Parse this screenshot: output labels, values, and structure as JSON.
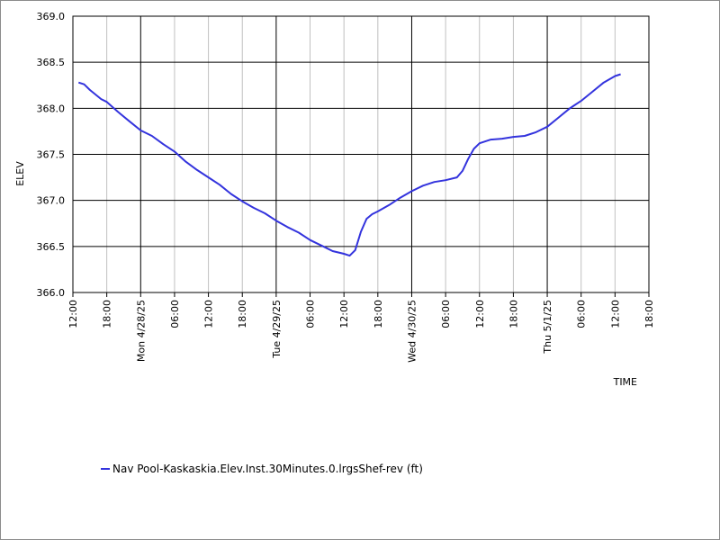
{
  "chart_data": {
    "type": "line",
    "xlabel": "TIME",
    "ylabel": "ELEV",
    "ylim": [
      366.0,
      369.0
    ],
    "xlim": [
      "2025-04-27T12:00",
      "2025-05-01T18:00"
    ],
    "y_ticks": [
      "369.0",
      "368.5",
      "368.0",
      "367.5",
      "367.0",
      "366.5",
      "366.0"
    ],
    "x_ticks": [
      "12:00",
      "18:00",
      "Mon 4/28/25",
      "06:00",
      "12:00",
      "18:00",
      "Tue 4/29/25",
      "06:00",
      "12:00",
      "18:00",
      "Wed 4/30/25",
      "06:00",
      "12:00",
      "18:00",
      "Thu 5/1/25",
      "06:00",
      "12:00",
      "18:00"
    ],
    "major_gridlines_at": [
      "Mon 4/28/25",
      "Tue 4/29/25",
      "Wed 4/30/25",
      "Thu 5/1/25"
    ],
    "grid": true,
    "legend_position": "bottom-left",
    "series": [
      {
        "name": "Nav Pool-Kaskaskia.Elev.Inst.30Minutes.0.lrgsShef-rev (ft)",
        "color": "#3333dd",
        "x": [
          "2025-04-27T13:00",
          "2025-04-27T14:00",
          "2025-04-27T15:00",
          "2025-04-27T17:00",
          "2025-04-27T18:00",
          "2025-04-27T20:00",
          "2025-04-27T22:00",
          "2025-04-28T00:00",
          "2025-04-28T02:00",
          "2025-04-28T04:00",
          "2025-04-28T06:00",
          "2025-04-28T08:00",
          "2025-04-28T10:00",
          "2025-04-28T12:00",
          "2025-04-28T14:00",
          "2025-04-28T16:00",
          "2025-04-28T18:00",
          "2025-04-28T20:00",
          "2025-04-28T22:00",
          "2025-04-29T00:00",
          "2025-04-29T02:00",
          "2025-04-29T04:00",
          "2025-04-29T06:00",
          "2025-04-29T08:00",
          "2025-04-29T10:00",
          "2025-04-29T12:00",
          "2025-04-29T13:00",
          "2025-04-29T14:00",
          "2025-04-29T15:00",
          "2025-04-29T16:00",
          "2025-04-29T17:00",
          "2025-04-29T18:00",
          "2025-04-29T20:00",
          "2025-04-29T22:00",
          "2025-04-30T00:00",
          "2025-04-30T02:00",
          "2025-04-30T04:00",
          "2025-04-30T06:00",
          "2025-04-30T08:00",
          "2025-04-30T09:00",
          "2025-04-30T10:00",
          "2025-04-30T11:00",
          "2025-04-30T12:00",
          "2025-04-30T14:00",
          "2025-04-30T16:00",
          "2025-04-30T18:00",
          "2025-04-30T20:00",
          "2025-04-30T22:00",
          "2025-05-01T00:00",
          "2025-05-01T02:00",
          "2025-05-01T04:00",
          "2025-05-01T06:00",
          "2025-05-01T08:00",
          "2025-05-01T10:00",
          "2025-05-01T12:00",
          "2025-05-01T13:00"
        ],
        "values": [
          368.28,
          368.26,
          368.2,
          368.1,
          368.07,
          367.96,
          367.86,
          367.76,
          367.7,
          367.61,
          367.53,
          367.42,
          367.33,
          367.25,
          367.17,
          367.07,
          366.99,
          366.92,
          366.86,
          366.78,
          366.71,
          366.65,
          366.57,
          366.51,
          366.45,
          366.42,
          366.4,
          366.46,
          366.66,
          366.8,
          366.85,
          366.88,
          366.95,
          367.03,
          367.1,
          367.16,
          367.2,
          367.22,
          367.25,
          367.32,
          367.45,
          367.56,
          367.62,
          367.66,
          367.67,
          367.69,
          367.7,
          367.74,
          367.8,
          367.9,
          368.0,
          368.08,
          368.18,
          368.28,
          368.35,
          368.37
        ]
      }
    ]
  }
}
